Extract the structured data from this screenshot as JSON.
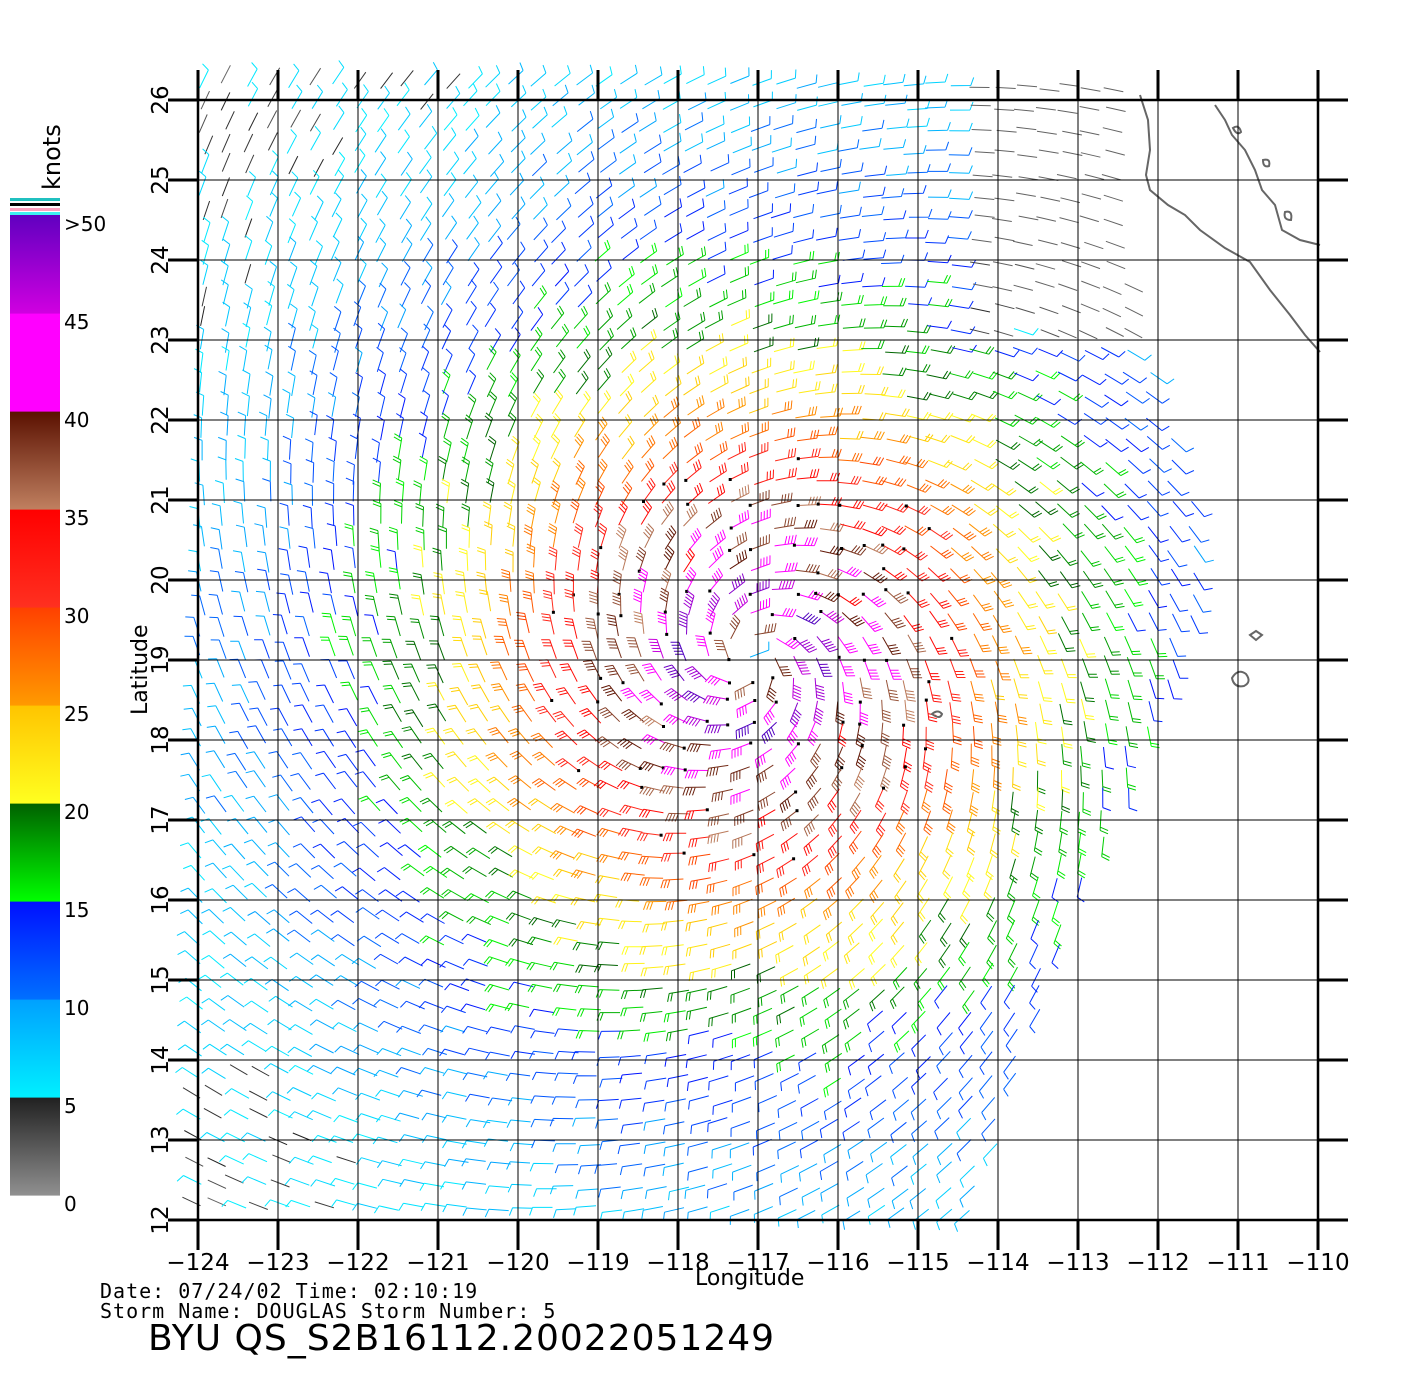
{
  "map": {
    "xlabel": "Longitude",
    "ylabel": "Latitude",
    "lon_ticks": [
      "-124",
      "-123",
      "-122",
      "-121",
      "-120",
      "-119",
      "-118",
      "-117",
      "-116",
      "-115",
      "-114",
      "-113",
      "-112",
      "-111",
      "-110"
    ],
    "lat_ticks": [
      "12",
      "13",
      "14",
      "15",
      "16",
      "17",
      "18",
      "19",
      "20",
      "21",
      "22",
      "23",
      "24",
      "25",
      "26"
    ],
    "lon_range": [
      -124,
      -110
    ],
    "lat_range": [
      12,
      26
    ],
    "storm_center": {
      "lon": -117.1,
      "lat": 19.0
    },
    "swath_west_lon": -124,
    "land_color": "#666666"
  },
  "colorbar": {
    "units": "knots",
    "tick_labels": [
      ">50",
      "45",
      "40",
      "35",
      "30",
      "25",
      "20",
      "15",
      "10",
      "5",
      "0"
    ],
    "bands": [
      {
        "from": 0,
        "to": 5,
        "top": "#202020",
        "bottom": "#909090"
      },
      {
        "from": 5,
        "to": 10,
        "top": "#00a0ff",
        "bottom": "#00f0ff"
      },
      {
        "from": 10,
        "to": 15,
        "top": "#0010ff",
        "bottom": "#0070ff"
      },
      {
        "from": 15,
        "to": 20,
        "top": "#006000",
        "bottom": "#00ff00"
      },
      {
        "from": 20,
        "to": 25,
        "top": "#ffc400",
        "bottom": "#ffff20"
      },
      {
        "from": 25,
        "to": 30,
        "top": "#ff4000",
        "bottom": "#ff9a00"
      },
      {
        "from": 30,
        "to": 35,
        "top": "#ff0000",
        "bottom": "#ff3020"
      },
      {
        "from": 35,
        "to": 40,
        "top": "#5a1000",
        "bottom": "#c08060"
      },
      {
        "from": 40,
        "to": 45,
        "top": "#ff00ff",
        "bottom": "#ff00ff"
      },
      {
        "from": 45,
        "to": 50,
        "top": "#6000c0",
        "bottom": "#d000e0"
      }
    ]
  },
  "footer": {
    "date_line": "Date: 07/24/02   Time: 02:10:19",
    "storm_line": "Storm Name: DOUGLAS   Storm Number: 5",
    "product": "BYU QS_S2B16112.20022051249"
  }
}
